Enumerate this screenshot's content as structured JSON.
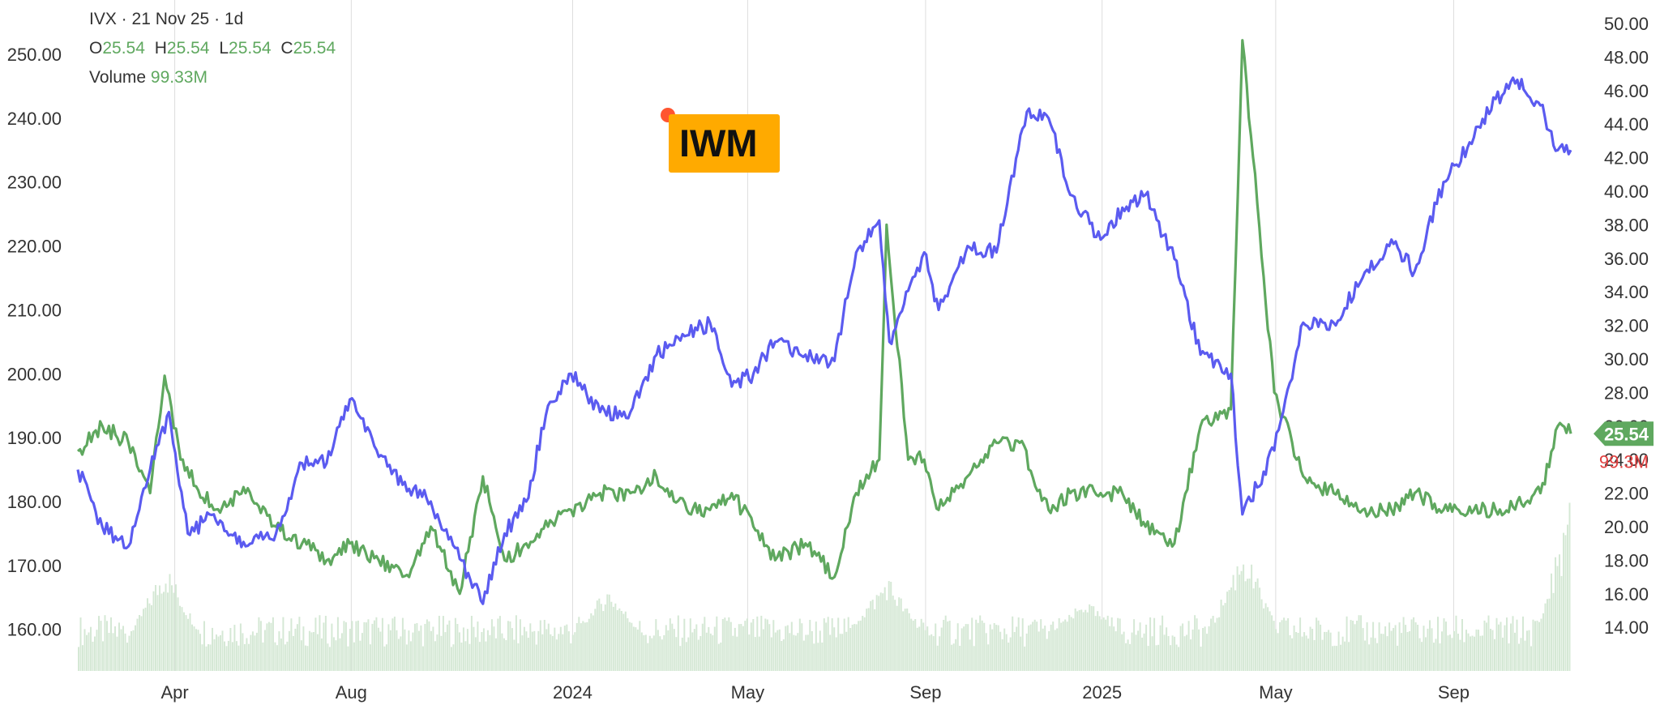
{
  "header": {
    "symbol_line": "IVX · 21 Nov 25 · 1d",
    "ohlc": [
      {
        "label": "O",
        "value": "25.54"
      },
      {
        "label": "H",
        "value": "25.54"
      },
      {
        "label": "L",
        "value": "25.54"
      },
      {
        "label": "C",
        "value": "25.54"
      }
    ],
    "volume_label": "Volume",
    "volume_value": "99.33M"
  },
  "badge": {
    "text": "IWM",
    "color": "#ffaa00",
    "dot_color": "#ff5530"
  },
  "colors": {
    "iwm_line": "#5b5bf0",
    "ivx_line": "#5fa85f",
    "volume_bars": "#d5e8d5",
    "last_value_tag": "#5fa85f",
    "volume_tag_text": "#e04040",
    "gridlines": "#dddddd"
  },
  "chart_data": {
    "type": "line",
    "x_range": [
      "2023-01-24",
      "2025-11-21"
    ],
    "x_tick_labels": [
      {
        "label": "Apr",
        "date": "2023-04-01"
      },
      {
        "label": "Aug",
        "date": "2023-08-01"
      },
      {
        "label": "2024",
        "date": "2024-01-01"
      },
      {
        "label": "May",
        "date": "2024-05-01"
      },
      {
        "label": "Sep",
        "date": "2024-09-01"
      },
      {
        "label": "2025",
        "date": "2025-01-01"
      },
      {
        "label": "May",
        "date": "2025-05-01"
      },
      {
        "label": "Sep",
        "date": "2025-09-01"
      }
    ],
    "left_axis": {
      "ticks": [
        "160.00",
        "170.00",
        "180.00",
        "190.00",
        "200.00",
        "210.00",
        "220.00",
        "230.00",
        "240.00",
        "250.00"
      ],
      "range": [
        153.5,
        258.5
      ]
    },
    "right_axis": {
      "ticks": [
        "14.00",
        "16.00",
        "18.00",
        "20.00",
        "22.00",
        "24.00",
        "26.00",
        "28.00",
        "30.00",
        "32.00",
        "34.00",
        "36.00",
        "38.00",
        "40.00",
        "42.00",
        "44.00",
        "46.00",
        "48.00",
        "50.00"
      ],
      "range": [
        11.4,
        51.4
      ]
    },
    "series": [
      {
        "axis": "left",
        "points": [
          [
            "2023-01-24",
            185
          ],
          [
            "2023-02-10",
            176
          ],
          [
            "2023-02-28",
            173
          ],
          [
            "2023-03-15",
            185
          ],
          [
            "2023-03-28",
            194
          ],
          [
            "2023-04-10",
            175
          ],
          [
            "2023-04-28",
            178
          ],
          [
            "2023-05-20",
            173
          ],
          [
            "2023-06-10",
            175
          ],
          [
            "2023-06-28",
            186
          ],
          [
            "2023-07-15",
            186
          ],
          [
            "2023-07-31",
            196
          ],
          [
            "2023-08-20",
            187
          ],
          [
            "2023-09-10",
            182
          ],
          [
            "2023-09-25",
            180
          ],
          [
            "2023-10-15",
            171
          ],
          [
            "2023-10-31",
            164
          ],
          [
            "2023-11-15",
            175
          ],
          [
            "2023-11-30",
            180
          ],
          [
            "2023-12-15",
            195
          ],
          [
            "2023-12-31",
            200
          ],
          [
            "2024-01-20",
            194
          ],
          [
            "2024-02-10",
            194
          ],
          [
            "2024-02-28",
            203
          ],
          [
            "2024-03-20",
            206
          ],
          [
            "2024-04-05",
            208
          ],
          [
            "2024-04-20",
            198
          ],
          [
            "2024-05-05",
            200
          ],
          [
            "2024-05-20",
            205
          ],
          [
            "2024-06-10",
            203
          ],
          [
            "2024-06-30",
            202
          ],
          [
            "2024-07-15",
            219
          ],
          [
            "2024-07-31",
            224
          ],
          [
            "2024-08-07",
            205
          ],
          [
            "2024-08-20",
            213
          ],
          [
            "2024-08-31",
            219
          ],
          [
            "2024-09-10",
            210
          ],
          [
            "2024-09-30",
            220
          ],
          [
            "2024-10-20",
            219
          ],
          [
            "2024-11-10",
            241
          ],
          [
            "2024-11-25",
            240
          ],
          [
            "2024-12-10",
            228
          ],
          [
            "2024-12-31",
            221
          ],
          [
            "2025-01-15",
            226
          ],
          [
            "2025-01-31",
            228
          ],
          [
            "2025-02-20",
            218
          ],
          [
            "2025-03-10",
            203
          ],
          [
            "2025-03-31",
            200
          ],
          [
            "2025-04-08",
            178
          ],
          [
            "2025-04-30",
            188
          ],
          [
            "2025-05-20",
            208
          ],
          [
            "2025-06-10",
            208
          ],
          [
            "2025-06-30",
            215
          ],
          [
            "2025-07-20",
            221
          ],
          [
            "2025-08-05",
            216
          ],
          [
            "2025-08-25",
            230
          ],
          [
            "2025-09-15",
            237
          ],
          [
            "2025-09-30",
            243
          ],
          [
            "2025-10-15",
            246
          ],
          [
            "2025-10-31",
            242
          ],
          [
            "2025-11-12",
            235
          ],
          [
            "2025-11-21",
            235
          ]
        ]
      },
      {
        "axis": "right",
        "points": [
          [
            "2023-01-24",
            24.5
          ],
          [
            "2023-02-10",
            26
          ],
          [
            "2023-02-28",
            25
          ],
          [
            "2023-03-15",
            22
          ],
          [
            "2023-03-25",
            29
          ],
          [
            "2023-04-05",
            24
          ],
          [
            "2023-04-28",
            21
          ],
          [
            "2023-05-20",
            22
          ],
          [
            "2023-06-10",
            20
          ],
          [
            "2023-06-28",
            19
          ],
          [
            "2023-07-15",
            18
          ],
          [
            "2023-07-31",
            19
          ],
          [
            "2023-08-20",
            18
          ],
          [
            "2023-09-10",
            17
          ],
          [
            "2023-09-25",
            20
          ],
          [
            "2023-10-15",
            16
          ],
          [
            "2023-10-31",
            23
          ],
          [
            "2023-11-15",
            18
          ],
          [
            "2023-11-30",
            19
          ],
          [
            "2023-12-15",
            20
          ],
          [
            "2023-12-31",
            21
          ],
          [
            "2024-01-20",
            22
          ],
          [
            "2024-02-10",
            22
          ],
          [
            "2024-02-28",
            23
          ],
          [
            "2024-03-20",
            21
          ],
          [
            "2024-04-05",
            21
          ],
          [
            "2024-04-20",
            22
          ],
          [
            "2024-05-05",
            20
          ],
          [
            "2024-05-20",
            18
          ],
          [
            "2024-06-10",
            19
          ],
          [
            "2024-06-30",
            17
          ],
          [
            "2024-07-15",
            22
          ],
          [
            "2024-07-31",
            24
          ],
          [
            "2024-08-05",
            38
          ],
          [
            "2024-08-20",
            24
          ],
          [
            "2024-08-31",
            24
          ],
          [
            "2024-09-10",
            21
          ],
          [
            "2024-09-30",
            23
          ],
          [
            "2024-10-20",
            25
          ],
          [
            "2024-11-05",
            25
          ],
          [
            "2024-11-25",
            21
          ],
          [
            "2024-12-10",
            22
          ],
          [
            "2024-12-31",
            22
          ],
          [
            "2025-01-15",
            22
          ],
          [
            "2025-01-31",
            20
          ],
          [
            "2025-02-20",
            19
          ],
          [
            "2025-03-10",
            26
          ],
          [
            "2025-03-31",
            27
          ],
          [
            "2025-04-08",
            49
          ],
          [
            "2025-04-30",
            28
          ],
          [
            "2025-05-20",
            23
          ],
          [
            "2025-06-10",
            22
          ],
          [
            "2025-06-30",
            21
          ],
          [
            "2025-07-20",
            21
          ],
          [
            "2025-08-05",
            22
          ],
          [
            "2025-08-25",
            21
          ],
          [
            "2025-09-15",
            21
          ],
          [
            "2025-09-30",
            21
          ],
          [
            "2025-10-15",
            21.5
          ],
          [
            "2025-10-31",
            22
          ],
          [
            "2025-11-12",
            26
          ],
          [
            "2025-11-21",
            25.54
          ]
        ]
      }
    ],
    "volume_bars": {
      "axis": "left",
      "base": 153.5,
      "typical": 159,
      "points": [
        [
          "2023-03-25",
          171
        ],
        [
          "2024-01-25",
          167
        ],
        [
          "2024-07-31",
          167
        ],
        [
          "2024-08-05",
          169
        ],
        [
          "2024-12-20",
          165
        ],
        [
          "2025-04-08",
          174
        ],
        [
          "2025-11-21",
          182
        ]
      ]
    },
    "last_value_tag": "25.54",
    "volume_tag": "99.3M"
  }
}
